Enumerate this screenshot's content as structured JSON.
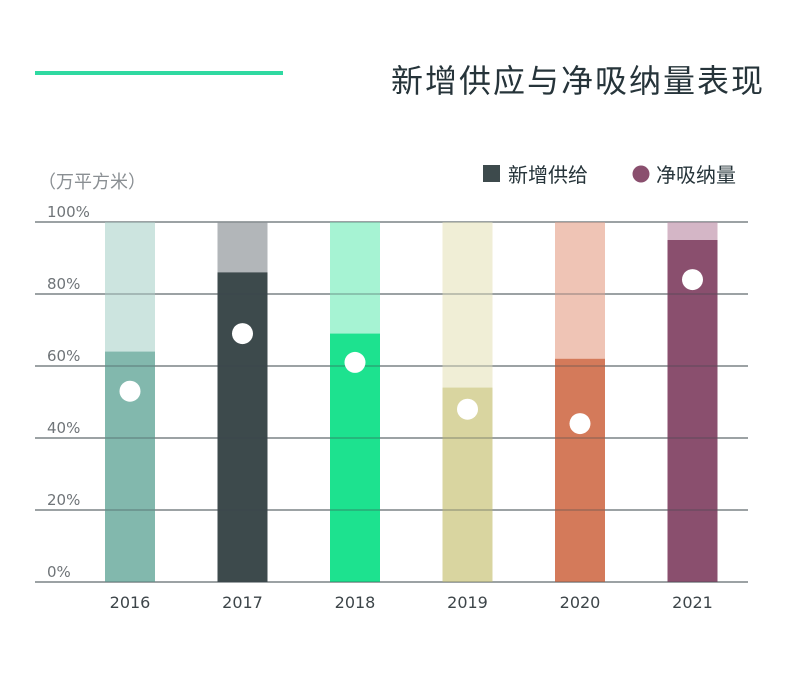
{
  "chart_data": {
    "type": "bar",
    "title": "新增供应与净吸纳量表现",
    "unit_label": "（万平方米）",
    "legend": [
      {
        "label": "新增供给",
        "marker": "square",
        "color": "#3d4a4c"
      },
      {
        "label": "净吸纳量",
        "marker": "circle",
        "color": "#8a4f6e"
      }
    ],
    "categories": [
      "2016",
      "2017",
      "2018",
      "2019",
      "2020",
      "2021"
    ],
    "ylim": [
      0,
      100
    ],
    "y_ticks": [
      "0%",
      "20%",
      "40%",
      "60%",
      "80%",
      "100%"
    ],
    "grid": true,
    "series": [
      {
        "name": "新增供给",
        "values": [
          64,
          86,
          69,
          54,
          62,
          95
        ]
      },
      {
        "name": "净吸纳量",
        "values": [
          53,
          69,
          61,
          48,
          44,
          84
        ]
      }
    ],
    "bar_colors": [
      {
        "base": "#82b8ad",
        "light": "#cce4df"
      },
      {
        "base": "#3d4a4c",
        "light": "#b2b6b9"
      },
      {
        "base": "#1de28f",
        "light": "#a6f3d3"
      },
      {
        "base": "#d9d5a0",
        "light": "#f0eed6"
      },
      {
        "base": "#d47a5a",
        "light": "#efc4b5"
      },
      {
        "base": "#8a4f6e",
        "light": "#d4b6c6"
      }
    ],
    "accent_line_color": "#2fd9a1"
  }
}
